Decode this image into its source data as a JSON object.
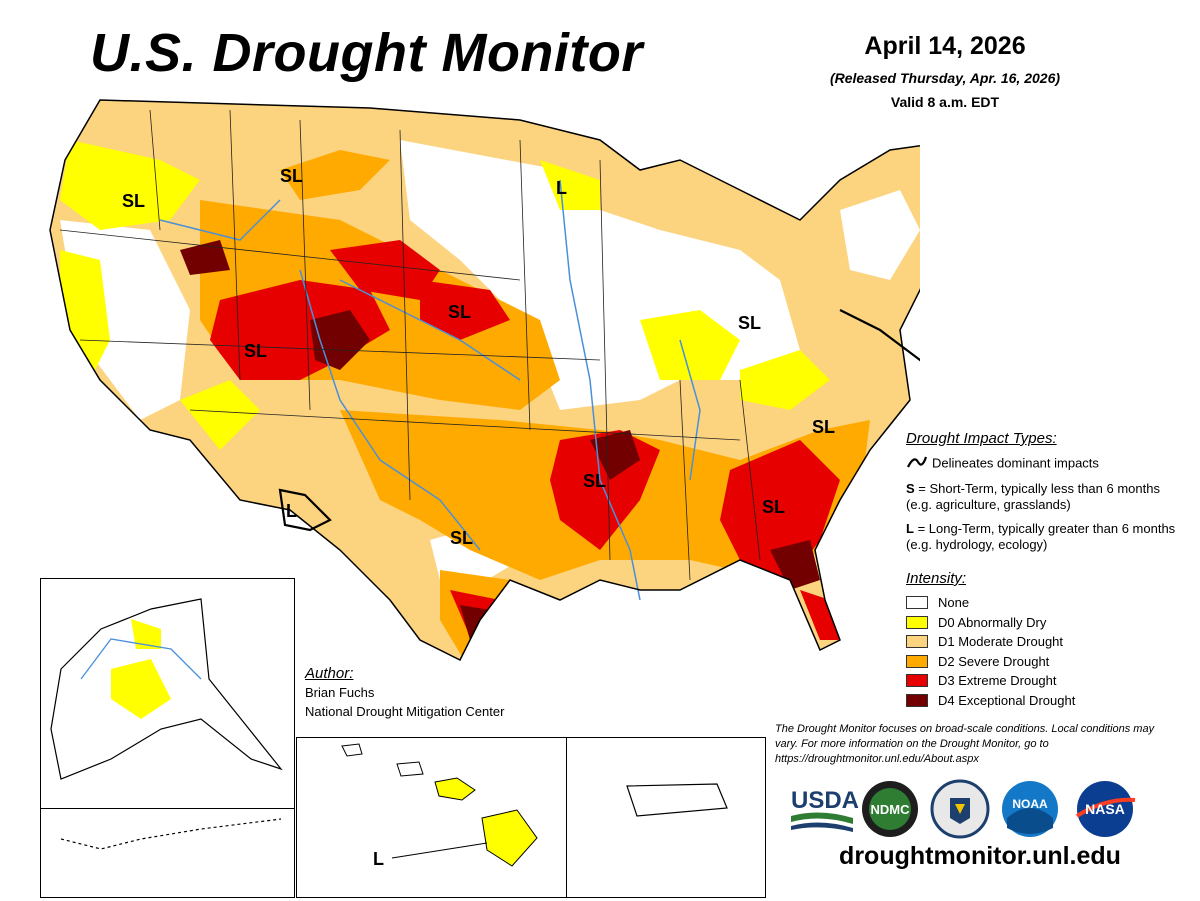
{
  "header": {
    "title": "U.S. Drought Monitor",
    "date": "April 14, 2026",
    "released": "(Released Thursday, Apr. 16, 2026)",
    "valid": "Valid 8 a.m. EDT"
  },
  "map_labels": [
    "SL",
    "SL",
    "L",
    "SL",
    "SL",
    "SL",
    "L",
    "SL",
    "SL",
    "SL",
    "SL",
    "SL",
    "L",
    "L"
  ],
  "impact_types": {
    "heading": "Drought Impact Types:",
    "delineates": "Delineates dominant impacts",
    "short_term_key": "S",
    "short_term_text": "= Short-Term, typically less than 6 months (e.g. agriculture, grasslands)",
    "long_term_key": "L",
    "long_term_text": "= Long-Term, typically greater than 6 months (e.g. hydrology, ecology)"
  },
  "intensity": {
    "heading": "Intensity:",
    "items": [
      {
        "label": "None",
        "color": "#ffffff"
      },
      {
        "label": "D0 Abnormally Dry",
        "color": "#ffff00"
      },
      {
        "label": "D1 Moderate Drought",
        "color": "#fcd37f"
      },
      {
        "label": "D2 Severe Drought",
        "color": "#ffaa00"
      },
      {
        "label": "D3 Extreme Drought",
        "color": "#e60000"
      },
      {
        "label": "D4 Exceptional Drought",
        "color": "#730000"
      }
    ]
  },
  "author": {
    "heading": "Author:",
    "name": "Brian Fuchs",
    "org": "National Drought Mitigation Center"
  },
  "note": "The Drought Monitor focuses on broad-scale conditions. Local conditions may vary. For more information on the Drought Monitor, go to https://droughtmonitor.unl.edu/About.aspx",
  "logos": {
    "usda": "USDA",
    "ndmc": "NDMC",
    "noaa": "NOAA",
    "nasa": "NASA"
  },
  "website": "droughtmonitor.unl.edu"
}
